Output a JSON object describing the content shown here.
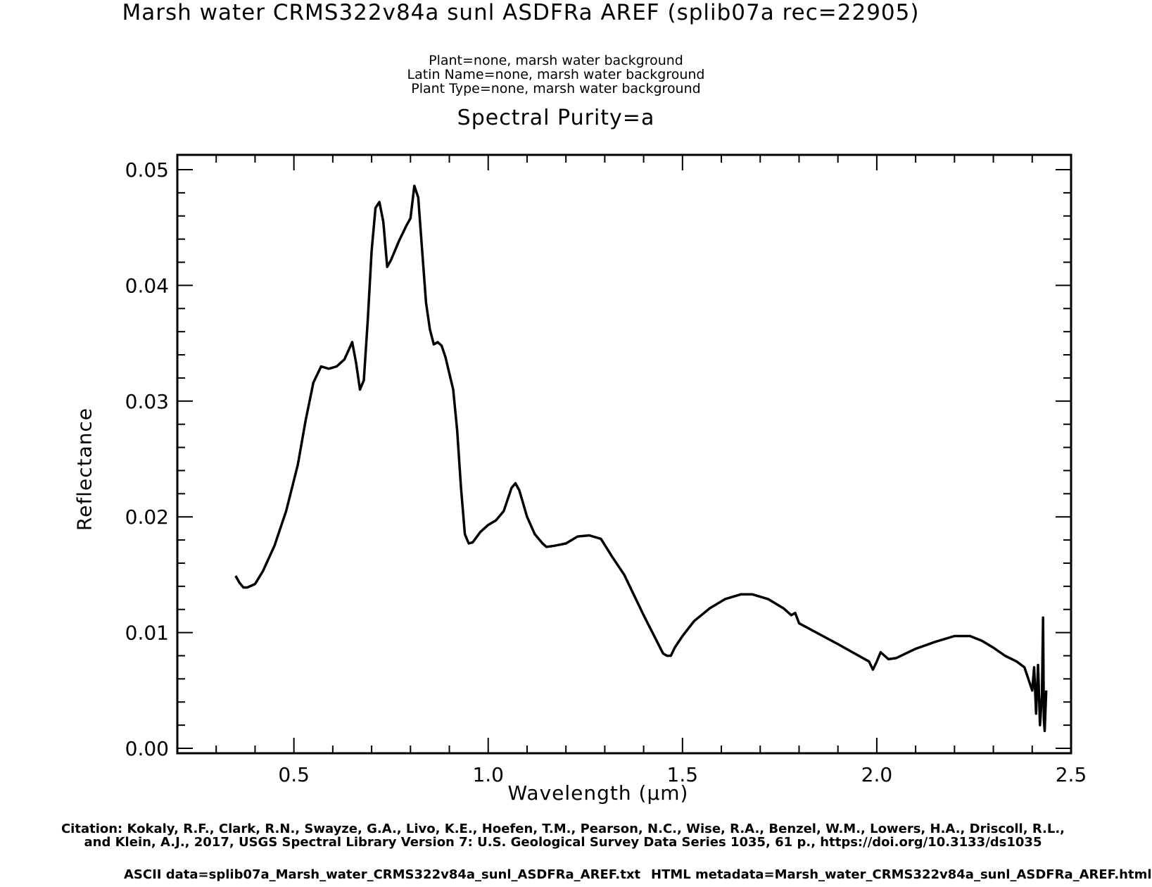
{
  "header": {
    "title": "Marsh water CRMS322v84a sunl ASDFRa AREF    (splib07a rec=22905)",
    "sub1": "Plant=none, marsh water background",
    "sub2": "Latin Name=none, marsh water background",
    "sub3": "Plant Type=none, marsh water background",
    "purity": "Spectral Purity=a"
  },
  "footer": {
    "citation1": "Citation: Kokaly, R.F., Clark, R.N., Swayze, G.A., Livo, K.E., Hoefen, T.M., Pearson, N.C., Wise, R.A., Benzel, W.M., Lowers, H.A., Driscoll, R.L.,",
    "citation2": "and Klein, A.J., 2017, USGS Spectral Library Version 7: U.S. Geological Survey Data Series 1035, 61 p., https://doi.org/10.3133/ds1035",
    "ascii": "ASCII data=splib07a_Marsh_water_CRMS322v84a_sunl_ASDFRa_AREF.txt",
    "html": "HTML metadata=Marsh_water_CRMS322v84a_sunl_ASDFRa_AREF.html"
  },
  "chart_data": {
    "type": "line",
    "xlabel": "Wavelength (μm)",
    "ylabel": "Reflectance",
    "xlim": [
      0.2,
      2.5
    ],
    "ylim": [
      0.0,
      0.05
    ],
    "x_ticks": [
      0.5,
      1.0,
      1.5,
      2.0,
      2.5
    ],
    "x_tick_labels": [
      "0.5",
      "1.0",
      "1.5",
      "2.0",
      "2.5"
    ],
    "y_ticks": [
      0.0,
      0.01,
      0.02,
      0.03,
      0.04,
      0.05
    ],
    "y_tick_labels": [
      "0.00",
      "0.01",
      "0.02",
      "0.03",
      "0.04",
      "0.05"
    ],
    "grid": false,
    "line_color": "#000000",
    "series": [
      {
        "points": [
          [
            0.35,
            0.0149
          ],
          [
            0.36,
            0.0143
          ],
          [
            0.37,
            0.0139
          ],
          [
            0.38,
            0.0139
          ],
          [
            0.4,
            0.0142
          ],
          [
            0.42,
            0.0153
          ],
          [
            0.45,
            0.0175
          ],
          [
            0.48,
            0.0205
          ],
          [
            0.51,
            0.0245
          ],
          [
            0.53,
            0.0283
          ],
          [
            0.55,
            0.0316
          ],
          [
            0.57,
            0.033
          ],
          [
            0.59,
            0.0328
          ],
          [
            0.61,
            0.033
          ],
          [
            0.63,
            0.0336
          ],
          [
            0.65,
            0.0351
          ],
          [
            0.66,
            0.0333
          ],
          [
            0.67,
            0.031
          ],
          [
            0.68,
            0.0318
          ],
          [
            0.69,
            0.037
          ],
          [
            0.7,
            0.043
          ],
          [
            0.71,
            0.0467
          ],
          [
            0.72,
            0.0472
          ],
          [
            0.73,
            0.0455
          ],
          [
            0.74,
            0.0416
          ],
          [
            0.75,
            0.0422
          ],
          [
            0.77,
            0.0438
          ],
          [
            0.79,
            0.0452
          ],
          [
            0.8,
            0.0458
          ],
          [
            0.81,
            0.0486
          ],
          [
            0.82,
            0.0476
          ],
          [
            0.83,
            0.043
          ],
          [
            0.84,
            0.0385
          ],
          [
            0.85,
            0.0362
          ],
          [
            0.86,
            0.0349
          ],
          [
            0.87,
            0.0351
          ],
          [
            0.88,
            0.0348
          ],
          [
            0.89,
            0.0338
          ],
          [
            0.91,
            0.031
          ],
          [
            0.92,
            0.0275
          ],
          [
            0.93,
            0.0225
          ],
          [
            0.94,
            0.0185
          ],
          [
            0.95,
            0.0177
          ],
          [
            0.96,
            0.0178
          ],
          [
            0.98,
            0.0187
          ],
          [
            1.0,
            0.0193
          ],
          [
            1.02,
            0.0197
          ],
          [
            1.04,
            0.0205
          ],
          [
            1.06,
            0.0225
          ],
          [
            1.07,
            0.0229
          ],
          [
            1.08,
            0.0223
          ],
          [
            1.1,
            0.02
          ],
          [
            1.12,
            0.0185
          ],
          [
            1.14,
            0.0177
          ],
          [
            1.15,
            0.0174
          ],
          [
            1.17,
            0.0175
          ],
          [
            1.2,
            0.0177
          ],
          [
            1.23,
            0.0183
          ],
          [
            1.26,
            0.0184
          ],
          [
            1.29,
            0.0181
          ],
          [
            1.32,
            0.0165
          ],
          [
            1.35,
            0.015
          ],
          [
            1.4,
            0.0115
          ],
          [
            1.45,
            0.0082
          ],
          [
            1.46,
            0.008
          ],
          [
            1.47,
            0.008
          ],
          [
            1.48,
            0.0087
          ],
          [
            1.5,
            0.0097
          ],
          [
            1.53,
            0.011
          ],
          [
            1.57,
            0.0121
          ],
          [
            1.61,
            0.0129
          ],
          [
            1.65,
            0.0133
          ],
          [
            1.68,
            0.0133
          ],
          [
            1.72,
            0.0129
          ],
          [
            1.76,
            0.0121
          ],
          [
            1.78,
            0.0115
          ],
          [
            1.79,
            0.0117
          ],
          [
            1.8,
            0.0108
          ],
          [
            1.9,
            0.009
          ],
          [
            1.98,
            0.0075
          ],
          [
            1.99,
            0.0068
          ],
          [
            2.0,
            0.0075
          ],
          [
            2.01,
            0.0083
          ],
          [
            2.02,
            0.008
          ],
          [
            2.03,
            0.0077
          ],
          [
            2.05,
            0.0078
          ],
          [
            2.1,
            0.0086
          ],
          [
            2.15,
            0.0092
          ],
          [
            2.2,
            0.0097
          ],
          [
            2.24,
            0.0097
          ],
          [
            2.27,
            0.0093
          ],
          [
            2.3,
            0.0087
          ],
          [
            2.33,
            0.008
          ],
          [
            2.36,
            0.0075
          ],
          [
            2.38,
            0.007
          ],
          [
            2.39,
            0.006
          ],
          [
            2.4,
            0.005
          ],
          [
            2.405,
            0.007
          ],
          [
            2.41,
            0.003
          ],
          [
            2.415,
            0.0072
          ],
          [
            2.42,
            0.002
          ],
          [
            2.425,
            0.0045
          ],
          [
            2.428,
            0.0113
          ],
          [
            2.43,
            0.0025
          ],
          [
            2.432,
            0.0015
          ],
          [
            2.436,
            0.005
          ]
        ]
      }
    ]
  }
}
